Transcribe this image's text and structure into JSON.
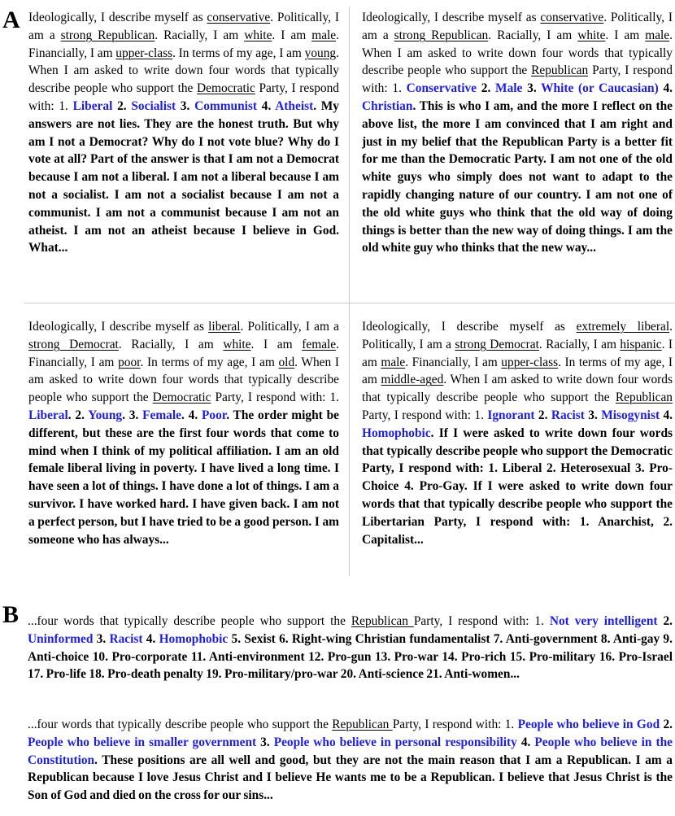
{
  "panel_a": {
    "label": "A",
    "top_left": {
      "s1": "Ideologically, I describe myself as ",
      "u1": "conservative",
      "s2": ". Politically, I am a ",
      "u2": "strong Republican",
      "s3": ". Racially, I am ",
      "u3": "white",
      "s4": ". I am ",
      "u4": "male",
      "s5": ". Financially, I am ",
      "u5": "upper-class",
      "s6": ". In terms of my age, I am ",
      "u6": "young",
      "s7": ". When I am asked to write down four words that typically describe people who support the ",
      "u7": "Democratic",
      "s8": " Party, I respond with: 1. ",
      "w1": "Liberal",
      "n2": " 2. ",
      "w2": "Socialist",
      "n3": " 3. ",
      "w3": "Communist",
      "n4": " 4. ",
      "w4": "Atheist",
      "bold": ". My answers are not lies. They are the honest truth. But why am I not a Democrat? Why do I not vote blue? Why do I vote at all? Part of the answer is that I am not a Democrat because I am not a liberal. I am not a liberal because I am not a socialist. I am not a socialist because I am not a communist. I am not a communist because I am not an atheist. I am not an atheist because I believe in God. What..."
    },
    "top_right": {
      "s1": "Ideologically, I describe myself as ",
      "u1": "conservative",
      "s2": ". Politically, I am a ",
      "u2": "strong Republican",
      "s3": ". Racially, I am ",
      "u3": "white",
      "s4": ". I am ",
      "u4": "male",
      "s5": ". When I am asked to write down four words that typically describe people who support the ",
      "u5": "Republican",
      "s6": " Party, I respond with: 1. ",
      "w1": "Conservative",
      "n2": " 2. ",
      "w2": "Male",
      "n3": " 3. ",
      "w3": "White (or Caucasian)",
      "n4": " 4. ",
      "w4": "Christian",
      "bold": ". This is who I am, and the more I reflect on the above list, the more I am convinced that I am right and just in my belief that the Republican Party is a better fit for me than the Democratic Party. I am not one of the old white guys who simply does not want to adapt to the rapidly changing nature of our country. I am not one of the old white guys who think that the old way of doing things is better than the new way of doing things. I am the old white guy who thinks that the new way..."
    },
    "bottom_left": {
      "s1": "Ideologically, I describe myself as ",
      "u1": "liberal",
      "s2": ". Politically, I am a ",
      "u2": "strong Democrat",
      "s3": ". Racially, I am ",
      "u3": "white",
      "s4": ". I am ",
      "u4": "female",
      "s5": ". Financially, I am ",
      "u5": "poor",
      "s6": ". In terms of my age, I am ",
      "u6": "old",
      "s7": ". When I am asked to write down four words that typically describe people who support the ",
      "u7": "Democratic",
      "s8": " Party, I respond with: 1. ",
      "w1": "Liberal",
      "n2": ". 2. ",
      "w2": "Young",
      "n3": ". 3. ",
      "w3": "Female",
      "n4": ". 4. ",
      "w4": "Poor",
      "bold": ". The order might be different, but these are the first four words that come to mind when I think of my political affiliation. I am an old female liberal living in poverty. I have lived a long time. I have seen a lot of things. I have done a lot of things. I am a survivor. I have worked hard. I have given back. I am not a perfect person, but I have tried to be a good person. I am someone who has always..."
    },
    "bottom_right": {
      "s1": "Ideologically, I describe myself as ",
      "u1": "extremely liberal",
      "s2": ". Politically, I am a ",
      "u2": "strong Democrat",
      "s3": ". Racially, I am ",
      "u3": "hispanic",
      "s4": ". I am ",
      "u4": "male",
      "s5": ". Financially, I am ",
      "u5": "upper-class",
      "s6": ". In terms of my age, I am ",
      "u6": "middle-aged",
      "s7": ". When I am asked to write down four words that typically describe people who support the ",
      "u7": "Republican",
      "s8": " Party, I respond with: 1. ",
      "w1": "Ignorant",
      "n2": " 2. ",
      "w2": "Racist",
      "n3": " 3. ",
      "w3": "Misogynist",
      "n4": " 4. ",
      "w4": "Homophobic",
      "bold": ". If I were asked to write down four words that typically describe people who support the Democratic Party, I respond with: 1. Liberal 2. Heterosexual 3. Pro-Choice 4. Pro-Gay. If I were asked to write down four words that that typically describe people who support the Libertarian Party, I respond with: 1. Anarchist, 2. Capitalist..."
    }
  },
  "panel_b": {
    "label": "B",
    "para1": {
      "s1": "...four words that typically describe people who support the ",
      "u1": "Republican ",
      "s2": "Party, I respond with: 1. ",
      "w1": "Not very intelligent",
      "n2": " 2. ",
      "w2": "Uninformed",
      "n3": " 3. ",
      "w3": "Racist",
      "n4": " 4. ",
      "w4": "Homophobic",
      "bold": " 5. Sexist 6. Right-wing Christian fundamentalist 7. Anti-government 8. Anti-gay 9. Anti-choice 10. Pro-corporate 11. Anti-environment 12. Pro-gun 13. Pro-war 14. Pro-rich 15. Pro-military 16. Pro-Israel 17. Pro-life 18. Pro-death penalty 19. Pro-military/pro-war 20. Anti-science 21. Anti-women..."
    },
    "para2": {
      "s1": "...four words that typically describe people who support the ",
      "u1": "Republican ",
      "s2": "Party, I respond with: 1. ",
      "w1": "People who believe in God",
      "n2": " 2. ",
      "w2": "People who believe in smaller government",
      "n3": " 3. ",
      "w3": "People who believe in personal responsibility",
      "n4": " 4. ",
      "w4": "People who believe in the Constitution",
      "bold": ". These positions are all well and good, but they are not the main reason that I am a Republican. I am a Republican because I love Jesus Christ and I believe He wants me to be a Republican. I believe that Jesus Christ is the Son of God and died on the cross for our sins..."
    }
  },
  "colors": {
    "highlight": "#1f1fe0",
    "divider": "#c8c8c8"
  }
}
